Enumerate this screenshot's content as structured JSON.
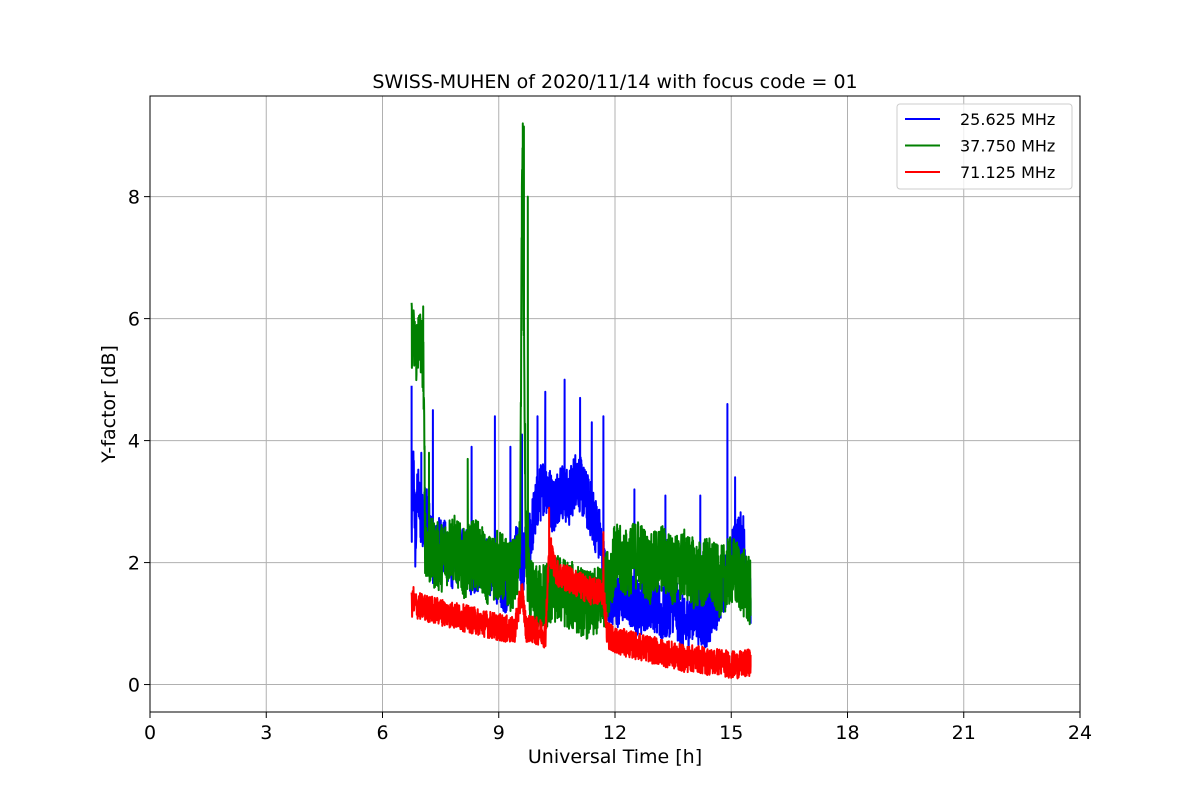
{
  "chart_data": {
    "type": "line",
    "title": "SWISS-MUHEN of 2020/11/14 with focus code = 01",
    "xlabel": "Universal Time [h]",
    "ylabel": "Y-factor [dB]",
    "xlim": [
      0,
      24
    ],
    "ylim": [
      -0.45,
      9.65
    ],
    "xticks": [
      0,
      3,
      6,
      9,
      12,
      15,
      18,
      21,
      24
    ],
    "yticks": [
      0,
      2,
      4,
      6,
      8
    ],
    "grid": true,
    "legend_position": "top-right",
    "series": [
      {
        "name": "25.625 MHz",
        "color": "#0000ff",
        "x": [
          6.75,
          6.8,
          6.85,
          6.9,
          7.0,
          7.1,
          7.3,
          7.5,
          7.8,
          8.0,
          8.3,
          8.6,
          8.9,
          9.2,
          9.5,
          9.6,
          9.8,
          10.0,
          10.2,
          10.4,
          10.6,
          10.8,
          11.0,
          11.2,
          11.4,
          11.6,
          11.8,
          12.0,
          12.3,
          12.6,
          12.9,
          13.2,
          13.5,
          13.8,
          14.0,
          14.3,
          14.6,
          14.9,
          15.1,
          15.3,
          15.5
        ],
        "y": [
          2.5,
          3.6,
          2.2,
          3.2,
          2.6,
          2.9,
          2.1,
          2.3,
          2.0,
          2.2,
          1.9,
          2.0,
          1.8,
          1.6,
          2.2,
          1.9,
          2.4,
          3.0,
          3.3,
          2.9,
          3.2,
          3.0,
          3.4,
          3.1,
          2.8,
          2.4,
          1.5,
          1.3,
          1.5,
          1.2,
          1.4,
          1.1,
          1.3,
          0.9,
          1.2,
          1.0,
          1.3,
          1.8,
          2.2,
          2.4,
          1.2
        ],
        "spikes": [
          [
            6.75,
            4.9
          ],
          [
            7.0,
            3.8
          ],
          [
            7.3,
            4.5
          ],
          [
            8.3,
            3.9
          ],
          [
            8.9,
            4.4
          ],
          [
            9.3,
            3.9
          ],
          [
            9.6,
            4.1
          ],
          [
            10.0,
            4.4
          ],
          [
            10.2,
            4.8
          ],
          [
            10.7,
            5.0
          ],
          [
            11.1,
            4.7
          ],
          [
            11.4,
            4.3
          ],
          [
            11.7,
            4.4
          ],
          [
            12.5,
            3.2
          ],
          [
            13.3,
            3.1
          ],
          [
            14.2,
            3.1
          ],
          [
            14.9,
            4.6
          ],
          [
            15.1,
            3.4
          ]
        ],
        "low_band": 0.45,
        "high_band": 0.5
      },
      {
        "name": "37.750 MHz",
        "color": "#008000",
        "x": [
          6.75,
          6.85,
          6.95,
          7.05,
          7.1,
          7.2,
          7.5,
          7.8,
          8.1,
          8.4,
          8.7,
          9.0,
          9.3,
          9.45,
          9.55,
          9.6,
          9.7,
          9.8,
          10.0,
          10.2,
          10.5,
          10.8,
          11.1,
          11.4,
          11.7,
          12.0,
          12.3,
          12.6,
          12.9,
          13.2,
          13.5,
          13.8,
          14.1,
          14.4,
          14.7,
          15.0,
          15.2,
          15.4,
          15.5
        ],
        "y": [
          5.8,
          5.5,
          5.7,
          5.4,
          2.4,
          2.2,
          2.1,
          2.3,
          2.0,
          2.2,
          1.9,
          2.0,
          1.8,
          1.9,
          2.3,
          8.8,
          2.2,
          1.5,
          1.4,
          1.5,
          1.6,
          1.5,
          1.4,
          1.3,
          1.5,
          2.1,
          2.0,
          2.2,
          1.9,
          2.1,
          1.9,
          2.0,
          1.8,
          1.9,
          1.7,
          1.9,
          1.8,
          1.6,
          1.5
        ],
        "spikes": [
          [
            6.8,
            6.1
          ],
          [
            7.05,
            6.2
          ],
          [
            7.2,
            3.8
          ],
          [
            8.2,
            3.7
          ],
          [
            9.62,
            9.2
          ],
          [
            9.65,
            9.15
          ],
          [
            9.75,
            8.0
          ]
        ],
        "low_band": 0.6,
        "high_band": 0.55
      },
      {
        "name": "71.125 MHz",
        "color": "#ff0000",
        "x": [
          6.75,
          7.0,
          7.3,
          7.6,
          7.9,
          8.2,
          8.5,
          8.8,
          9.1,
          9.4,
          9.6,
          9.7,
          10.0,
          10.2,
          10.3,
          10.5,
          10.8,
          11.1,
          11.4,
          11.7,
          11.8,
          12.0,
          12.3,
          12.6,
          12.9,
          13.2,
          13.5,
          13.8,
          14.1,
          14.4,
          14.7,
          15.0,
          15.3,
          15.5
        ],
        "y": [
          1.3,
          1.25,
          1.2,
          1.15,
          1.1,
          1.05,
          1.0,
          0.95,
          0.9,
          0.85,
          1.5,
          0.9,
          0.85,
          0.8,
          2.2,
          1.8,
          1.7,
          1.6,
          1.5,
          1.5,
          0.8,
          0.7,
          0.65,
          0.6,
          0.55,
          0.5,
          0.45,
          0.4,
          0.4,
          0.35,
          0.35,
          0.3,
          0.3,
          0.35
        ],
        "spikes": [
          [
            6.8,
            1.6
          ],
          [
            10.3,
            2.9
          ],
          [
            10.35,
            2.4
          ],
          [
            11.7,
            2.5
          ]
        ],
        "low_band": 0.2,
        "high_band": 0.25
      }
    ]
  }
}
